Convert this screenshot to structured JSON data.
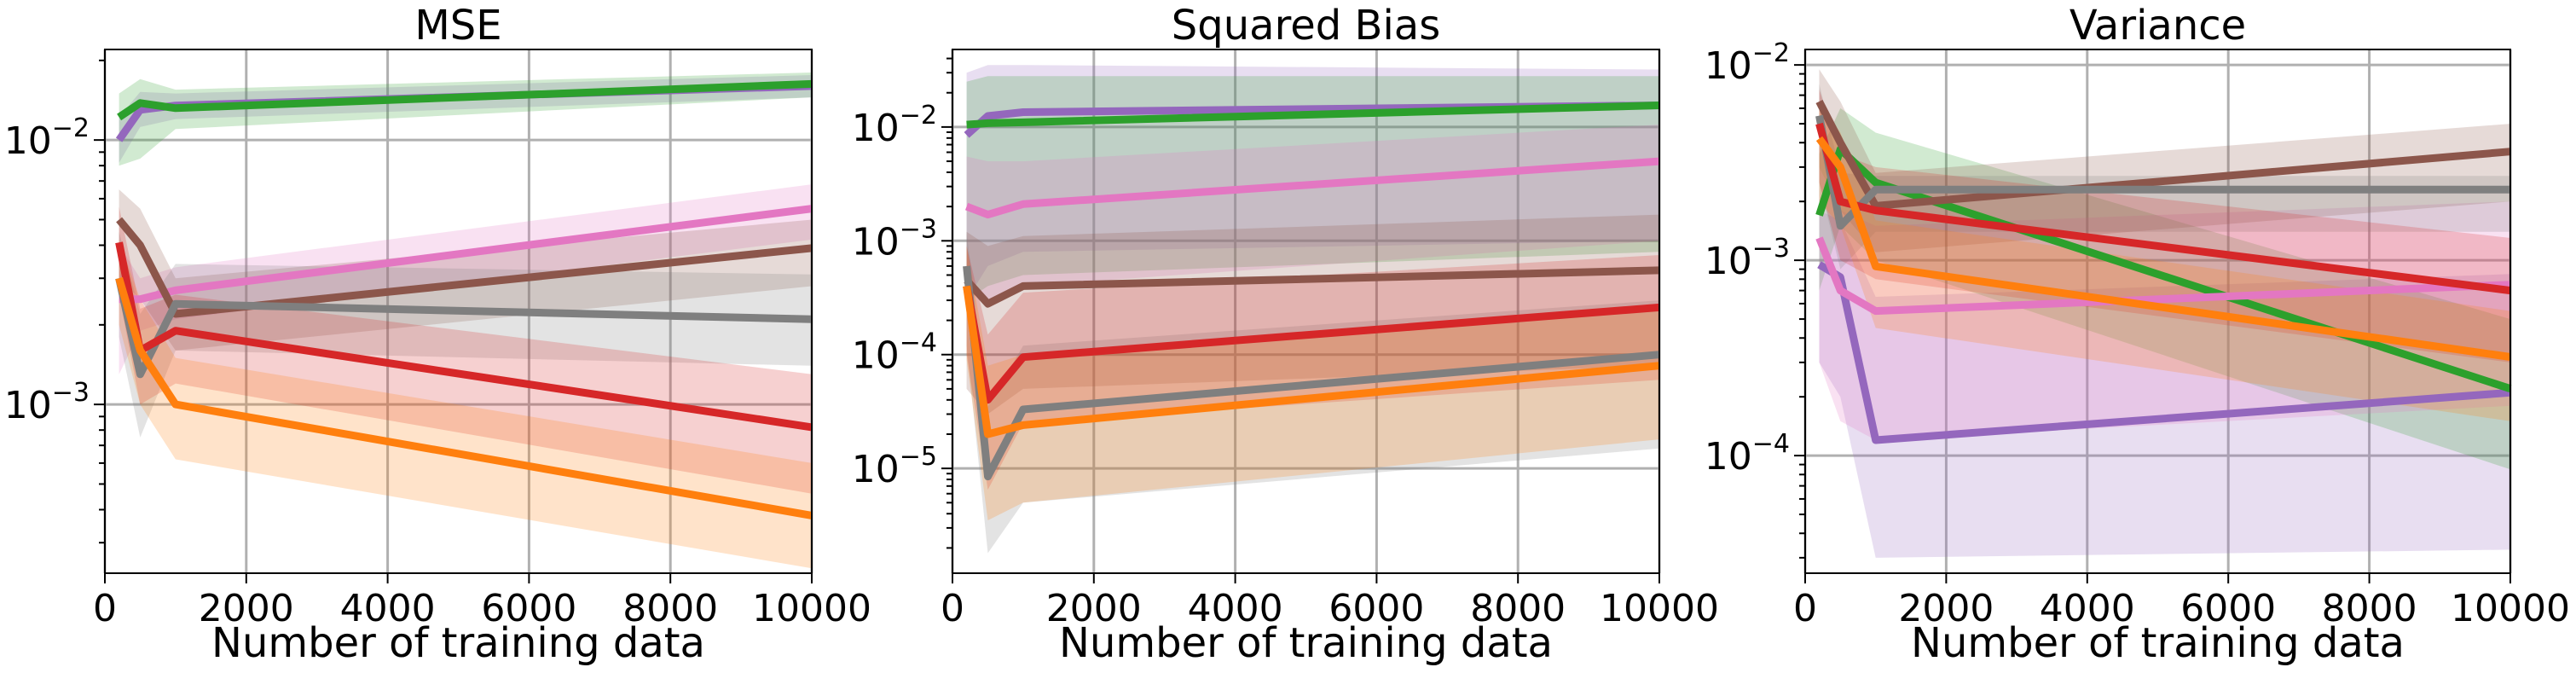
{
  "figure": {
    "colors": {
      "c1": "#9467bd",
      "c2": "#2ca02c",
      "c3": "#e377c2",
      "c4": "#8c564b",
      "c5": "#7f7f7f",
      "c6": "#d62728",
      "c7": "#ff7f0e"
    }
  },
  "chart_data": [
    {
      "type": "line",
      "title": "MSE",
      "xlabel": "Number of training data",
      "ylabel": "",
      "xlim": [
        0,
        10000
      ],
      "ylim": [
        0.00023,
        0.022
      ],
      "yscale": "log",
      "grid": true,
      "xticks": [
        0,
        2000,
        4000,
        6000,
        8000,
        10000
      ],
      "xtick_labels": [
        "0",
        "2000",
        "4000",
        "6000",
        "8000",
        "10000"
      ],
      "yticks": [
        0.001,
        0.01
      ],
      "ytick_labels": [
        {
          "base": "10",
          "exp": "−3"
        },
        {
          "base": "10",
          "exp": "−2"
        }
      ],
      "x": [
        200,
        500,
        1000,
        10000
      ],
      "series": [
        {
          "color_key": "c1",
          "values": [
            0.01,
            0.013,
            0.0135,
            0.016
          ],
          "lower": [
            0.0082,
            0.0112,
            0.012,
            0.0145
          ],
          "upper": [
            0.0122,
            0.0152,
            0.015,
            0.0176
          ]
        },
        {
          "color_key": "c2",
          "values": [
            0.0122,
            0.0138,
            0.0132,
            0.0163
          ],
          "lower": [
            0.008,
            0.0085,
            0.011,
            0.0145
          ],
          "upper": [
            0.015,
            0.017,
            0.0155,
            0.018
          ]
        },
        {
          "color_key": "c3",
          "values": [
            0.0025,
            0.0025,
            0.0027,
            0.0055
          ],
          "lower": [
            0.0013,
            0.0019,
            0.0021,
            0.0042
          ],
          "upper": [
            0.004,
            0.003,
            0.0033,
            0.0068
          ]
        },
        {
          "color_key": "c4",
          "values": [
            0.005,
            0.004,
            0.0022,
            0.0039
          ],
          "lower": [
            0.003,
            0.0025,
            0.0016,
            0.0028
          ],
          "upper": [
            0.0065,
            0.0055,
            0.003,
            0.005
          ]
        },
        {
          "color_key": "c5",
          "values": [
            0.003,
            0.0013,
            0.0024,
            0.0021
          ],
          "lower": [
            0.0018,
            0.00075,
            0.0016,
            0.0014
          ],
          "upper": [
            0.0045,
            0.0022,
            0.0034,
            0.0031
          ]
        },
        {
          "color_key": "c6",
          "values": [
            0.0041,
            0.0016,
            0.0019,
            0.00082
          ],
          "lower": [
            0.0026,
            0.001,
            0.0012,
            0.00046
          ],
          "upper": [
            0.0056,
            0.0023,
            0.0026,
            0.0013
          ]
        },
        {
          "color_key": "c7",
          "values": [
            0.003,
            0.0016,
            0.001,
            0.00038
          ],
          "lower": [
            0.002,
            0.001,
            0.00062,
            0.00024
          ],
          "upper": [
            0.0042,
            0.0025,
            0.0015,
            0.0006
          ]
        }
      ]
    },
    {
      "type": "line",
      "title": "Squared Bias",
      "xlabel": "Number of training data",
      "ylabel": "",
      "xlim": [
        0,
        10000
      ],
      "ylim": [
        1.2e-06,
        0.048
      ],
      "yscale": "log",
      "grid": true,
      "xticks": [
        0,
        2000,
        4000,
        6000,
        8000,
        10000
      ],
      "xtick_labels": [
        "0",
        "2000",
        "4000",
        "6000",
        "8000",
        "10000"
      ],
      "yticks": [
        1e-05,
        0.0001,
        0.001,
        0.01
      ],
      "ytick_labels": [
        {
          "base": "10",
          "exp": "−5"
        },
        {
          "base": "10",
          "exp": "−4"
        },
        {
          "base": "10",
          "exp": "−3"
        },
        {
          "base": "10",
          "exp": "−2"
        }
      ],
      "x": [
        200,
        500,
        1000,
        10000
      ],
      "series": [
        {
          "color_key": "c1",
          "values": [
            0.0085,
            0.0125,
            0.0135,
            0.0155
          ],
          "lower": [
            0.0003,
            0.0006,
            0.0008,
            0.001
          ],
          "upper": [
            0.03,
            0.035,
            0.035,
            0.032
          ]
        },
        {
          "color_key": "c2",
          "values": [
            0.0105,
            0.0108,
            0.011,
            0.0155
          ],
          "lower": [
            0.0003,
            0.0004,
            0.0005,
            0.0008
          ],
          "upper": [
            0.025,
            0.028,
            0.028,
            0.028
          ]
        },
        {
          "color_key": "c3",
          "values": [
            0.002,
            0.0017,
            0.0021,
            0.005
          ],
          "lower": [
            0.00035,
            0.0003,
            0.0004,
            0.001
          ],
          "upper": [
            0.0055,
            0.005,
            0.005,
            0.0105
          ]
        },
        {
          "color_key": "c4",
          "values": [
            0.00045,
            0.00028,
            0.0004,
            0.00055
          ],
          "lower": [
            5e-05,
            3e-05,
            5e-05,
            8e-05
          ],
          "upper": [
            0.0012,
            0.0009,
            0.0011,
            0.0017
          ]
        },
        {
          "color_key": "c5",
          "values": [
            0.0006,
            8.5e-06,
            3.3e-05,
            0.0001
          ],
          "lower": [
            0.00012,
            1.8e-06,
            5e-06,
            1.5e-05
          ],
          "upper": [
            0.0012,
            3.5e-05,
            0.00012,
            0.0003
          ]
        },
        {
          "color_key": "c6",
          "values": [
            0.0004,
            4e-05,
            9.5e-05,
            0.00026
          ],
          "lower": [
            0.0001,
            6.5e-06,
            2.5e-05,
            6e-05
          ],
          "upper": [
            0.0009,
            0.00015,
            0.00035,
            0.00075
          ]
        },
        {
          "color_key": "c7",
          "values": [
            0.0004,
            2e-05,
            2.4e-05,
            8e-05
          ],
          "lower": [
            9e-05,
            3.5e-06,
            5e-06,
            1.8e-05
          ],
          "upper": [
            0.0009,
            8e-05,
            0.0001,
            0.00025
          ]
        }
      ]
    },
    {
      "type": "line",
      "title": "Variance",
      "xlabel": "Number of training data",
      "ylabel": "",
      "xlim": [
        0,
        10000
      ],
      "ylim": [
        2.5e-05,
        0.012
      ],
      "yscale": "log",
      "grid": true,
      "xticks": [
        0,
        2000,
        4000,
        6000,
        8000,
        10000
      ],
      "xtick_labels": [
        "0",
        "2000",
        "4000",
        "6000",
        "8000",
        "10000"
      ],
      "yticks": [
        0.0001,
        0.001,
        0.01
      ],
      "ytick_labels": [
        {
          "base": "10",
          "exp": "−4"
        },
        {
          "base": "10",
          "exp": "−3"
        },
        {
          "base": "10",
          "exp": "−2"
        }
      ],
      "x": [
        200,
        500,
        1000,
        10000
      ],
      "series": [
        {
          "color_key": "c1",
          "values": [
            0.00095,
            0.00082,
            0.00012,
            0.00021
          ],
          "lower": [
            0.0003,
            0.0002,
            3e-05,
            3.3e-05
          ],
          "upper": [
            0.0018,
            0.0016,
            0.00065,
            0.00085
          ]
        },
        {
          "color_key": "c2",
          "values": [
            0.0017,
            0.0037,
            0.0025,
            0.00022
          ],
          "lower": [
            0.0007,
            0.0015,
            0.001,
            8.5e-05
          ],
          "upper": [
            0.0035,
            0.006,
            0.0045,
            0.0005
          ]
        },
        {
          "color_key": "c3",
          "values": [
            0.0013,
            0.0007,
            0.00055,
            0.00075
          ],
          "lower": [
            0.0003,
            0.00015,
            0.00012,
            0.00018
          ],
          "upper": [
            0.003,
            0.0018,
            0.0015,
            0.002
          ]
        },
        {
          "color_key": "c4",
          "values": [
            0.0065,
            0.004,
            0.0019,
            0.0036
          ],
          "lower": [
            0.003,
            0.0018,
            0.0011,
            0.002
          ],
          "upper": [
            0.0095,
            0.0065,
            0.0028,
            0.005
          ]
        },
        {
          "color_key": "c5",
          "values": [
            0.0055,
            0.0015,
            0.0023,
            0.0023
          ],
          "lower": [
            0.0025,
            0.0009,
            0.0014,
            0.0014
          ],
          "upper": [
            0.008,
            0.0028,
            0.0027,
            0.0027
          ]
        },
        {
          "color_key": "c6",
          "values": [
            0.005,
            0.002,
            0.0018,
            0.0007
          ],
          "lower": [
            0.0025,
            0.001,
            0.0008,
            0.0003
          ],
          "upper": [
            0.0075,
            0.0035,
            0.003,
            0.0013
          ]
        },
        {
          "color_key": "c7",
          "values": [
            0.0042,
            0.003,
            0.00093,
            0.00032
          ],
          "lower": [
            0.002,
            0.0015,
            0.00045,
            0.00015
          ],
          "upper": [
            0.0065,
            0.0045,
            0.0016,
            0.00055
          ]
        }
      ]
    }
  ]
}
